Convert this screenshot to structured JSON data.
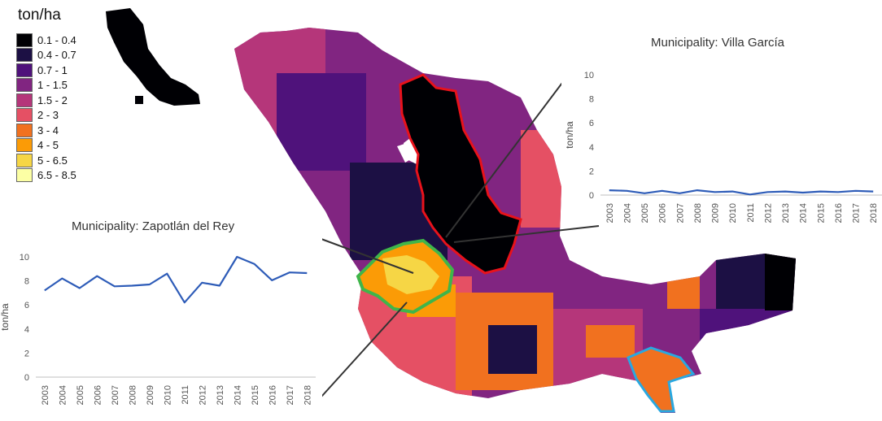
{
  "legend": {
    "title": "ton/ha",
    "items": [
      {
        "label": "0.1 - 0.4",
        "color": "#000004"
      },
      {
        "label": "0.4 - 0.7",
        "color": "#1c1044"
      },
      {
        "label": "0.7 - 1",
        "color": "#4f127b"
      },
      {
        "label": "1 - 1.5",
        "color": "#812581"
      },
      {
        "label": "1.5 - 2",
        "color": "#b5367a"
      },
      {
        "label": "2 - 3",
        "color": "#e55064"
      },
      {
        "label": "3 - 4",
        "color": "#f1711f"
      },
      {
        "label": "4 - 5",
        "color": "#fb9b06"
      },
      {
        "label": "5 - 6.5",
        "color": "#f6d645"
      },
      {
        "label": "6.5 - 8.5",
        "color": "#fcffa4"
      }
    ]
  },
  "highlights": [
    {
      "name": "Villa García region",
      "outline_color": "#e8121b"
    },
    {
      "name": "Zapotlán del Rey region",
      "outline_color": "#3fb54a"
    },
    {
      "name": "southern region",
      "outline_color": "#29a8e0"
    }
  ],
  "chart_data": [
    {
      "type": "line",
      "title": "Municipality: Villa García",
      "xlabel": "",
      "ylabel": "ton/ha",
      "x": [
        "2003",
        "2004",
        "2005",
        "2006",
        "2007",
        "2008",
        "2009",
        "2010",
        "2011",
        "2012",
        "2013",
        "2014",
        "2015",
        "2016",
        "2017",
        "2018"
      ],
      "series": [
        {
          "values": [
            0.4,
            0.35,
            0.15,
            0.35,
            0.15,
            0.4,
            0.25,
            0.3,
            0.05,
            0.25,
            0.3,
            0.2,
            0.3,
            0.25,
            0.35,
            0.3
          ],
          "color": "#2e5cb8"
        }
      ],
      "ylim": [
        0,
        10
      ],
      "yticks": [
        0,
        2,
        4,
        6,
        8,
        10
      ],
      "grid": false
    },
    {
      "type": "line",
      "title": "Municipality: Zapotlán del Rey",
      "xlabel": "",
      "ylabel": "ton/ha",
      "x": [
        "2003",
        "2004",
        "2005",
        "2006",
        "2007",
        "2008",
        "2009",
        "2010",
        "2011",
        "2012",
        "2013",
        "2014",
        "2015",
        "2016",
        "2017",
        "2018"
      ],
      "series": [
        {
          "values": [
            7.2,
            8.2,
            7.4,
            8.4,
            7.55,
            7.6,
            7.7,
            8.6,
            6.2,
            7.85,
            7.6,
            10.0,
            9.4,
            8.05,
            8.7,
            8.65
          ],
          "color": "#2e5cb8"
        }
      ],
      "ylim": [
        0,
        10
      ],
      "yticks": [
        0,
        2,
        4,
        6,
        8,
        10
      ],
      "grid": false
    }
  ]
}
